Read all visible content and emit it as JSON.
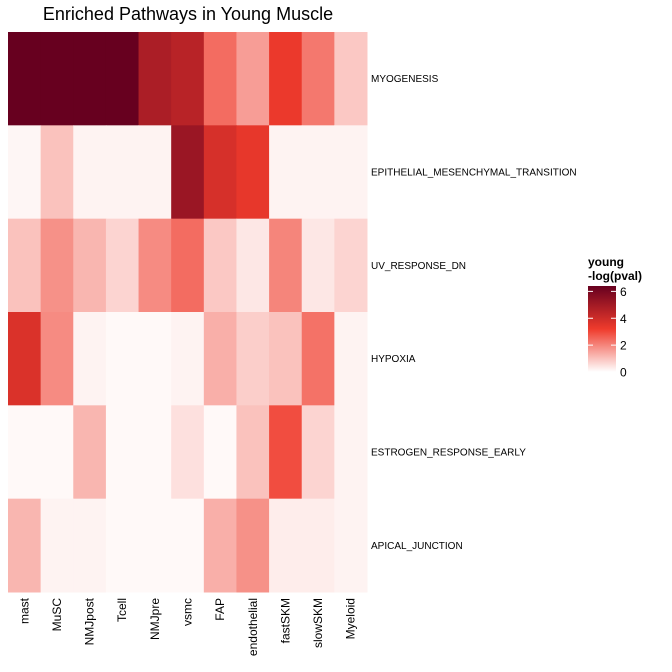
{
  "chart_data": {
    "type": "heatmap",
    "title": "Enriched Pathways in Young Muscle",
    "rows": [
      "MYOGENESIS",
      "EPITHELIAL_MESENCHYMAL_TRANSITION",
      "UV_RESPONSE_DN",
      "HYPOXIA",
      "ESTROGEN_RESPONSE_EARLY",
      "APICAL_JUNCTION"
    ],
    "columns": [
      "mast",
      "MuSC",
      "NMJpost",
      "Tcell",
      "NMJpre",
      "vsmc",
      "FAP",
      "endothelial",
      "fastSKM",
      "slowSKM",
      "Myeloid"
    ],
    "values": [
      [
        6.4,
        6.4,
        6.4,
        6.4,
        4.8,
        4.5,
        2.4,
        1.6,
        3.3,
        2.2,
        0.9
      ],
      [
        0.15,
        1.0,
        0.2,
        0.2,
        0.2,
        5.2,
        3.8,
        3.4,
        0.2,
        0.2,
        0.2
      ],
      [
        1.0,
        1.8,
        1.2,
        0.7,
        1.9,
        2.4,
        0.9,
        0.4,
        2.0,
        0.4,
        0.7
      ],
      [
        3.7,
        1.9,
        0.2,
        0.1,
        0.1,
        0.2,
        1.3,
        0.8,
        1.0,
        2.3,
        0.2
      ],
      [
        0.1,
        0.1,
        1.2,
        0.1,
        0.1,
        0.5,
        0.1,
        1.0,
        2.9,
        0.7,
        0.2
      ],
      [
        1.2,
        0.2,
        0.2,
        0.1,
        0.1,
        0.1,
        1.3,
        1.8,
        0.3,
        0.3,
        0.2
      ]
    ],
    "legend": {
      "title_line1": "young",
      "title_line2": "-log(pval)",
      "ticks": [
        0,
        2,
        4,
        6
      ],
      "tick_labels": [
        "0",
        "2",
        "4",
        "6"
      ],
      "range": [
        0,
        6.4
      ],
      "placement": "right"
    },
    "color_scale": [
      "#ffffff",
      "#ef3b2c",
      "#67001f"
    ]
  }
}
